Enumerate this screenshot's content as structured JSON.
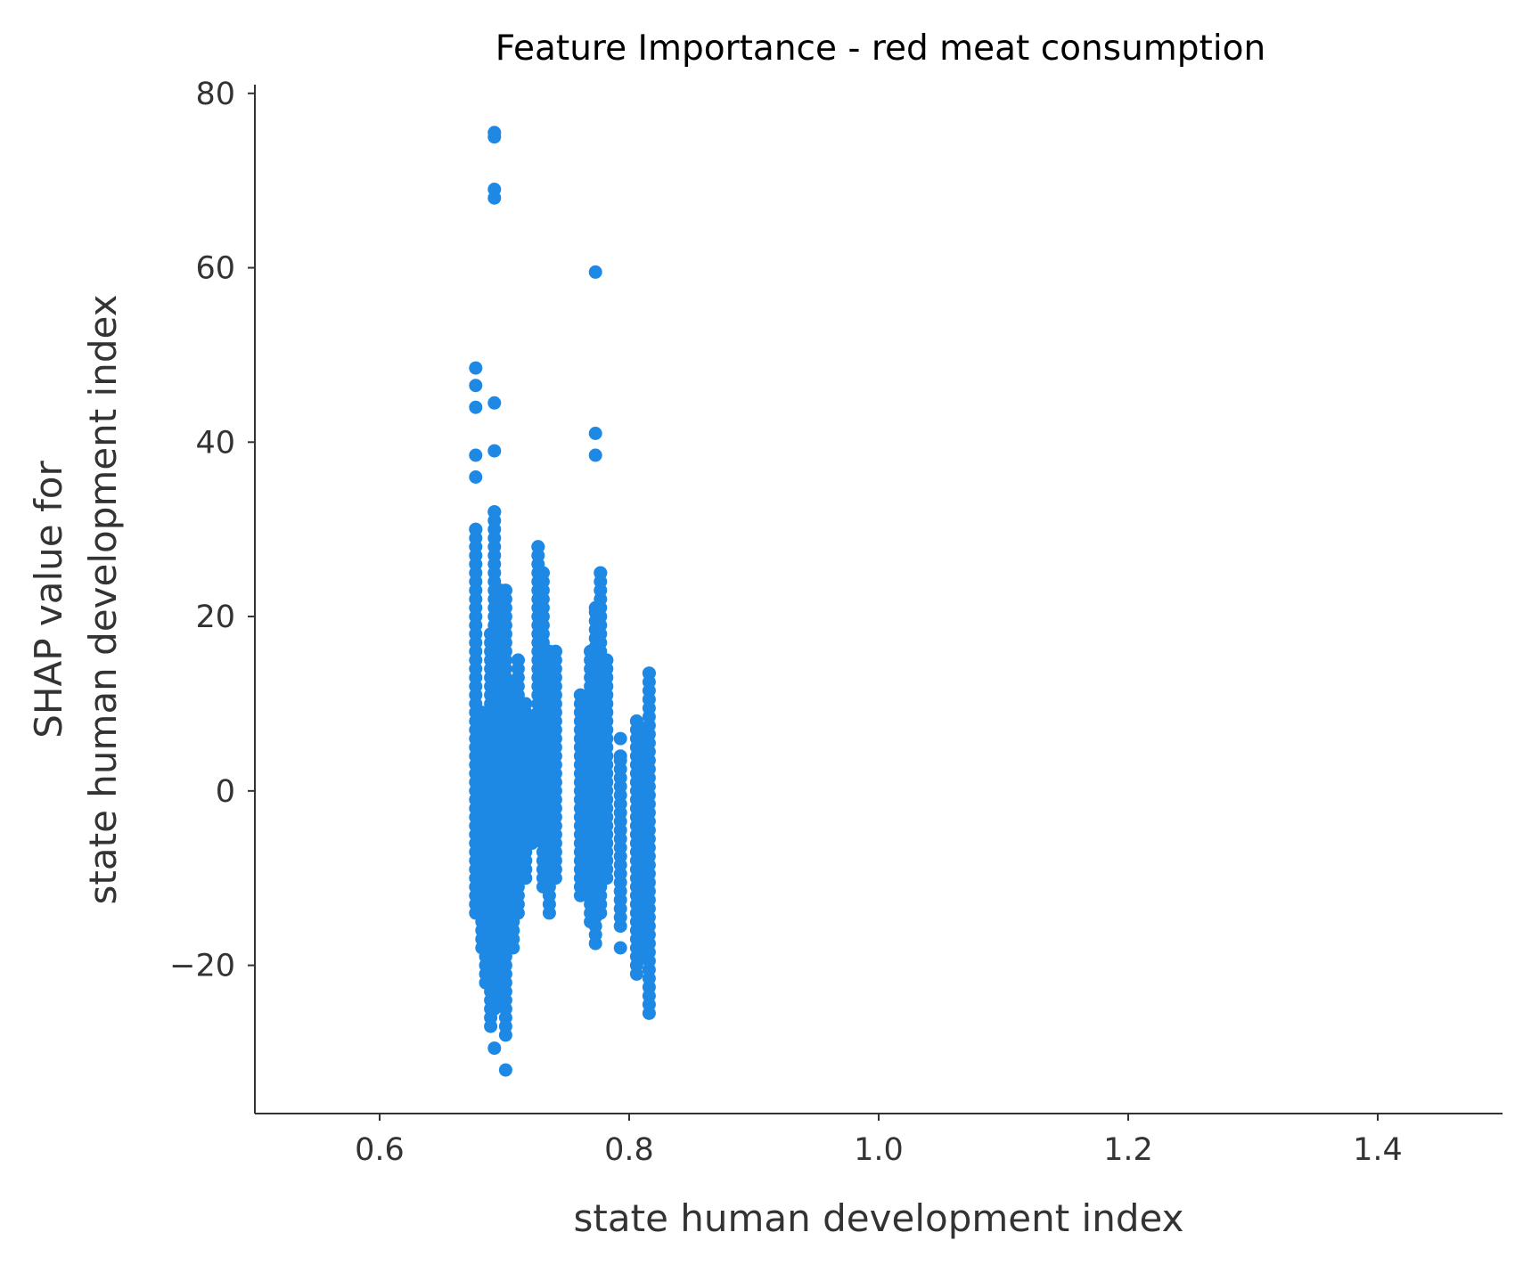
{
  "chart_data": {
    "type": "scatter",
    "title": "Feature Importance - red meat consumption",
    "xlabel": "state human development index",
    "ylabel_lines": [
      "SHAP value for",
      "state human development index"
    ],
    "xlim": [
      0.5,
      1.5
    ],
    "ylim": [
      -37,
      81
    ],
    "xticks": [
      0.6,
      0.8,
      1.0,
      1.2,
      1.4
    ],
    "xtick_labels": [
      "0.6",
      "0.8",
      "1.0",
      "1.2",
      "1.4"
    ],
    "yticks": [
      -20,
      0,
      20,
      40,
      60,
      80
    ],
    "ytick_labels": [
      "−20",
      "0",
      "20",
      "40",
      "60",
      "80"
    ],
    "grid": false,
    "point_color": "#1e88e5",
    "columns": [
      {
        "x": 0.677,
        "y_min": -14,
        "y_max": 30,
        "outliers": [
          36,
          38.5,
          44,
          46.5,
          48.5
        ]
      },
      {
        "x": 0.682,
        "y_min": -18,
        "y_max": 9
      },
      {
        "x": 0.685,
        "y_min": -22,
        "y_max": 8
      },
      {
        "x": 0.689,
        "y_min": -27,
        "y_max": 18
      },
      {
        "x": 0.692,
        "y_min": -25,
        "y_max": 32,
        "outliers": [
          -29.5,
          39,
          44.5,
          68,
          69,
          75,
          75.5
        ]
      },
      {
        "x": 0.697,
        "y_min": -24,
        "y_max": 23
      },
      {
        "x": 0.701,
        "y_min": -28,
        "y_max": 23,
        "outliers": [
          -32
        ]
      },
      {
        "x": 0.707,
        "y_min": -18,
        "y_max": 12
      },
      {
        "x": 0.711,
        "y_min": -14,
        "y_max": 15
      },
      {
        "x": 0.717,
        "y_min": -10,
        "y_max": 10
      },
      {
        "x": 0.722,
        "y_min": -6,
        "y_max": 8
      },
      {
        "x": 0.727,
        "y_min": -5,
        "y_max": 28
      },
      {
        "x": 0.731,
        "y_min": -11,
        "y_max": 25
      },
      {
        "x": 0.736,
        "y_min": -14,
        "y_max": 16
      },
      {
        "x": 0.741,
        "y_min": -10,
        "y_max": 16
      },
      {
        "x": 0.761,
        "y_min": -12,
        "y_max": 11
      },
      {
        "x": 0.765,
        "y_min": -11,
        "y_max": 6
      },
      {
        "x": 0.769,
        "y_min": -15,
        "y_max": 16
      },
      {
        "x": 0.773,
        "y_min": -17.5,
        "y_max": 21,
        "outliers": [
          38.5,
          41,
          59.5
        ]
      },
      {
        "x": 0.777,
        "y_min": -14,
        "y_max": 25
      },
      {
        "x": 0.782,
        "y_min": -10,
        "y_max": 15
      },
      {
        "x": 0.793,
        "y_min": -15.5,
        "y_max": 4,
        "outliers": [
          -18,
          6
        ]
      },
      {
        "x": 0.806,
        "y_min": -21,
        "y_max": 8
      },
      {
        "x": 0.811,
        "y_min": -19,
        "y_max": 7
      },
      {
        "x": 0.816,
        "y_min": -25.5,
        "y_max": 13.5
      }
    ]
  }
}
